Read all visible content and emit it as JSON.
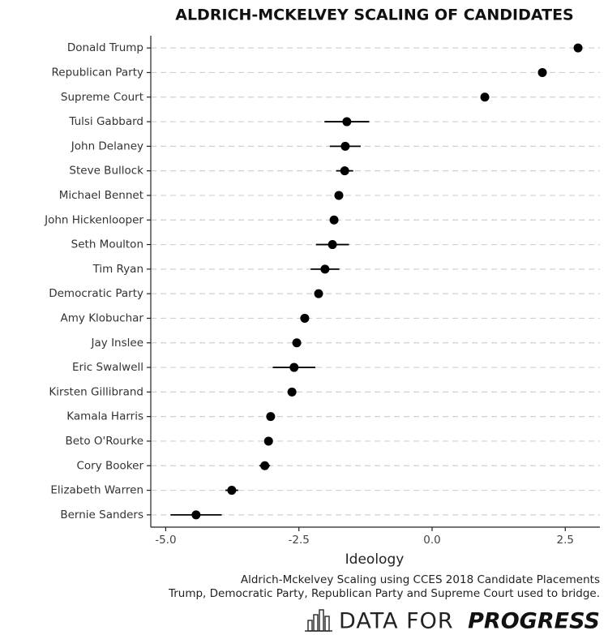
{
  "chart_data": {
    "type": "dot",
    "title": "ALDRICH-MCKELVEY SCALING OF CANDIDATES",
    "x_label": "Ideology",
    "caption": [
      "Aldrich-Mckelvey Scaling using CCES 2018 Candidate Placements",
      "Trump, Democratic Party, Republican Party and Supreme Court used to bridge."
    ],
    "logo": [
      "DATA FOR",
      "PROGRESS"
    ],
    "categories": [
      "Donald Trump",
      "Republican Party",
      "Supreme Court",
      "Tulsi Gabbard",
      "John Delaney",
      "Steve Bullock",
      "Michael Bennet",
      "John Hickenlooper",
      "Seth Moulton",
      "Tim Ryan",
      "Democratic Party",
      "Amy Klobuchar",
      "Jay Inslee",
      "Eric Swalwell",
      "Kirsten Gillibrand",
      "Kamala Harris",
      "Beto O'Rourke",
      "Cory Booker",
      "Elizabeth Warren",
      "Bernie Sanders"
    ],
    "values": [
      2.74,
      2.07,
      0.99,
      -1.6,
      -1.63,
      -1.64,
      -1.75,
      -1.84,
      -1.87,
      -2.01,
      -2.13,
      -2.39,
      -2.54,
      -2.59,
      -2.63,
      -3.03,
      -3.07,
      -3.14,
      -3.76,
      -4.43
    ],
    "errors": [
      0,
      0,
      0,
      0.42,
      0.29,
      0.16,
      0.08,
      0.03,
      0.31,
      0.27,
      0,
      0.08,
      0.08,
      0.4,
      0.03,
      0.03,
      0.03,
      0.1,
      0.12,
      0.48
    ],
    "color": "#000000",
    "xlim": [
      -5.28,
      3.15
    ],
    "xticks": [
      {
        "value": -5,
        "label": "-5.0"
      },
      -2.5,
      {
        "value": 0,
        "label": "0.0"
      },
      2.5
    ],
    "grid": true
  }
}
